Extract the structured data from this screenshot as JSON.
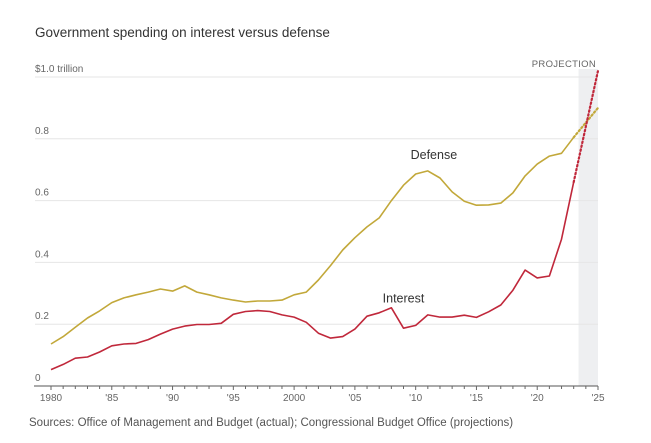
{
  "title": "Government spending on interest versus defense",
  "sources": "Sources: Office of Management and Budget (actual); Congressional Budget Office (projections)",
  "chart_data": {
    "type": "line",
    "title": "Government spending on interest versus defense",
    "xlabel": "",
    "ylabel": "",
    "y_unit": "$ trillion",
    "xlim": [
      1980,
      2025
    ],
    "ylim": [
      0,
      1.0
    ],
    "grid": true,
    "y_ticks": [
      {
        "value": 0,
        "label": "0"
      },
      {
        "value": 0.2,
        "label": "0.2"
      },
      {
        "value": 0.4,
        "label": "0.4"
      },
      {
        "value": 0.6,
        "label": "0.6"
      },
      {
        "value": 0.8,
        "label": "0.8"
      },
      {
        "value": 1.0,
        "label": "$1.0 trillion"
      }
    ],
    "x_ticks": [
      {
        "value": 1980,
        "label": "1980"
      },
      {
        "value": 1985,
        "label": "'85"
      },
      {
        "value": 1990,
        "label": "'90"
      },
      {
        "value": 1995,
        "label": "'95"
      },
      {
        "value": 2000,
        "label": "2000"
      },
      {
        "value": 2005,
        "label": "'05"
      },
      {
        "value": 2010,
        "label": "'10"
      },
      {
        "value": 2015,
        "label": "'15"
      },
      {
        "value": 2020,
        "label": "'20"
      },
      {
        "value": 2025,
        "label": "'25"
      }
    ],
    "projection": {
      "label": "PROJECTION",
      "start": 2023.4,
      "end": 2025
    },
    "series": [
      {
        "name": "Defense",
        "color": "#c2a83a",
        "label_at": {
          "x": 2011.5,
          "y": 0.735
        },
        "x": [
          1980,
          1981,
          1982,
          1983,
          1984,
          1985,
          1986,
          1987,
          1988,
          1989,
          1990,
          1991,
          1992,
          1993,
          1994,
          1995,
          1996,
          1997,
          1998,
          1999,
          2000,
          2001,
          2002,
          2003,
          2004,
          2005,
          2006,
          2007,
          2008,
          2009,
          2010,
          2011,
          2012,
          2013,
          2014,
          2015,
          2016,
          2017,
          2018,
          2019,
          2020,
          2021,
          2022,
          2023
        ],
        "values": [
          0.136,
          0.16,
          0.19,
          0.22,
          0.243,
          0.27,
          0.285,
          0.295,
          0.304,
          0.314,
          0.307,
          0.324,
          0.304,
          0.295,
          0.285,
          0.278,
          0.272,
          0.275,
          0.275,
          0.278,
          0.295,
          0.304,
          0.343,
          0.39,
          0.44,
          0.48,
          0.515,
          0.544,
          0.6,
          0.65,
          0.686,
          0.696,
          0.673,
          0.628,
          0.598,
          0.585,
          0.586,
          0.592,
          0.625,
          0.68,
          0.718,
          0.744,
          0.753,
          0.805
        ],
        "projection_x": [
          2023,
          2025
        ],
        "projection_values": [
          0.805,
          0.9
        ]
      },
      {
        "name": "Interest",
        "color": "#c0283b",
        "label_at": {
          "x": 2009,
          "y": 0.27
        },
        "x": [
          1980,
          1981,
          1982,
          1983,
          1984,
          1985,
          1986,
          1987,
          1988,
          1989,
          1990,
          1991,
          1992,
          1993,
          1994,
          1995,
          1996,
          1997,
          1998,
          1999,
          2000,
          2001,
          2002,
          2003,
          2004,
          2005,
          2006,
          2007,
          2008,
          2009,
          2010,
          2011,
          2012,
          2013,
          2014,
          2015,
          2016,
          2017,
          2018,
          2019,
          2020,
          2021,
          2022,
          2023
        ],
        "values": [
          0.053,
          0.07,
          0.09,
          0.094,
          0.11,
          0.13,
          0.136,
          0.138,
          0.15,
          0.168,
          0.184,
          0.194,
          0.199,
          0.199,
          0.203,
          0.232,
          0.241,
          0.244,
          0.241,
          0.23,
          0.223,
          0.206,
          0.171,
          0.155,
          0.16,
          0.184,
          0.226,
          0.237,
          0.253,
          0.187,
          0.196,
          0.23,
          0.223,
          0.223,
          0.229,
          0.222,
          0.24,
          0.262,
          0.31,
          0.375,
          0.35,
          0.356,
          0.475,
          0.66
        ],
        "projection_x": [
          2023,
          2025
        ],
        "projection_values": [
          0.66,
          1.02
        ]
      }
    ]
  }
}
